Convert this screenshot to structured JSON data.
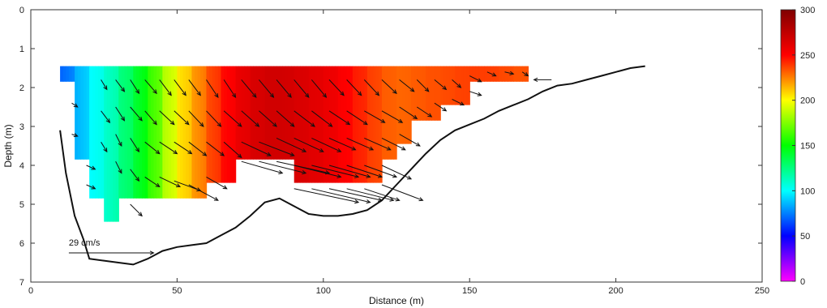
{
  "chart_data": {
    "type": "heatmap",
    "xlabel": "Distance (m)",
    "ylabel": "Depth (m)",
    "xlim": [
      0,
      250
    ],
    "ylim": [
      0,
      7
    ],
    "y_reversed": true,
    "xticks": [
      0,
      50,
      100,
      150,
      200,
      250
    ],
    "yticks": [
      0,
      1,
      2,
      3,
      4,
      5,
      6,
      7
    ],
    "colorbar": {
      "min": 0,
      "max": 300,
      "ticks": [
        0,
        50,
        100,
        150,
        200,
        250,
        300
      ],
      "colormap": "jet",
      "placement": "right"
    },
    "value_columns": [
      {
        "x0": 10,
        "x1": 15,
        "bottom": 1.85,
        "value": 70
      },
      {
        "x0": 15,
        "x1": 20,
        "bottom": 3.85,
        "value": 85
      },
      {
        "x0": 20,
        "x1": 25,
        "bottom": 4.85,
        "value": 100
      },
      {
        "x0": 25,
        "x1": 30,
        "bottom": 5.45,
        "value": 110
      },
      {
        "x0": 30,
        "x1": 35,
        "bottom": 4.85,
        "value": 125
      },
      {
        "x0": 35,
        "x1": 40,
        "bottom": 4.85,
        "value": 140
      },
      {
        "x0": 40,
        "x1": 45,
        "bottom": 4.85,
        "value": 160
      },
      {
        "x0": 45,
        "x1": 50,
        "bottom": 4.85,
        "value": 185
      },
      {
        "x0": 50,
        "x1": 55,
        "bottom": 4.85,
        "value": 205
      },
      {
        "x0": 55,
        "x1": 60,
        "bottom": 4.85,
        "value": 220
      },
      {
        "x0": 60,
        "x1": 65,
        "bottom": 4.45,
        "value": 235
      },
      {
        "x0": 65,
        "x1": 70,
        "bottom": 4.45,
        "value": 248
      },
      {
        "x0": 70,
        "x1": 75,
        "bottom": 3.85,
        "value": 258
      },
      {
        "x0": 75,
        "x1": 80,
        "bottom": 3.85,
        "value": 265
      },
      {
        "x0": 80,
        "x1": 85,
        "bottom": 3.85,
        "value": 268
      },
      {
        "x0": 85,
        "x1": 90,
        "bottom": 3.85,
        "value": 268
      },
      {
        "x0": 90,
        "x1": 95,
        "bottom": 4.45,
        "value": 265
      },
      {
        "x0": 95,
        "x1": 100,
        "bottom": 4.45,
        "value": 262
      },
      {
        "x0": 100,
        "x1": 105,
        "bottom": 4.45,
        "value": 258
      },
      {
        "x0": 105,
        "x1": 110,
        "bottom": 4.45,
        "value": 252
      },
      {
        "x0": 110,
        "x1": 115,
        "bottom": 4.45,
        "value": 245
      },
      {
        "x0": 115,
        "x1": 120,
        "bottom": 4.45,
        "value": 238
      },
      {
        "x0": 120,
        "x1": 125,
        "bottom": 3.85,
        "value": 232
      },
      {
        "x0": 125,
        "x1": 130,
        "bottom": 3.45,
        "value": 230
      },
      {
        "x0": 130,
        "x1": 135,
        "bottom": 2.85,
        "value": 232
      },
      {
        "x0": 135,
        "x1": 140,
        "bottom": 2.85,
        "value": 234
      },
      {
        "x0": 140,
        "x1": 145,
        "bottom": 2.45,
        "value": 235
      },
      {
        "x0": 145,
        "x1": 150,
        "bottom": 2.45,
        "value": 237
      },
      {
        "x0": 150,
        "x1": 155,
        "bottom": 1.85,
        "value": 238
      },
      {
        "x0": 155,
        "x1": 160,
        "bottom": 1.85,
        "value": 238
      },
      {
        "x0": 160,
        "x1": 165,
        "bottom": 1.85,
        "value": 236
      },
      {
        "x0": 165,
        "x1": 170,
        "bottom": 1.85,
        "value": 234
      }
    ],
    "value_top_depth": 1.45,
    "bathymetry": {
      "x": [
        10,
        12,
        15,
        18,
        20,
        25,
        30,
        35,
        40,
        45,
        50,
        55,
        60,
        65,
        70,
        75,
        80,
        85,
        90,
        95,
        100,
        105,
        110,
        115,
        120,
        125,
        130,
        135,
        140,
        145,
        150,
        155,
        160,
        165,
        170,
        175,
        180,
        185,
        190,
        195,
        200,
        205,
        210
      ],
      "depth": [
        3.1,
        4.2,
        5.3,
        5.9,
        6.4,
        6.45,
        6.5,
        6.55,
        6.4,
        6.2,
        6.1,
        6.05,
        6.0,
        5.8,
        5.6,
        5.3,
        4.95,
        4.85,
        5.05,
        5.25,
        5.3,
        5.3,
        5.25,
        5.15,
        4.9,
        4.5,
        4.1,
        3.7,
        3.35,
        3.1,
        2.95,
        2.8,
        2.6,
        2.45,
        2.3,
        2.1,
        1.95,
        1.9,
        1.8,
        1.7,
        1.6,
        1.5,
        1.45
      ]
    },
    "vector_reference": {
      "label": "29 cm/s",
      "x": 13,
      "depth": 6.25,
      "dx": 29,
      "ddepth": 0
    },
    "vectors": [
      {
        "x": 14,
        "depth": 2.4,
        "dx": 2,
        "ddepth": 0.1
      },
      {
        "x": 14,
        "depth": 3.2,
        "dx": 2,
        "ddepth": 0.05
      },
      {
        "x": 19,
        "depth": 4.0,
        "dx": 3,
        "ddepth": 0.1
      },
      {
        "x": 19,
        "depth": 4.5,
        "dx": 3,
        "ddepth": 0.1
      },
      {
        "x": 24,
        "depth": 1.8,
        "dx": 2,
        "ddepth": 0.25
      },
      {
        "x": 24,
        "depth": 2.6,
        "dx": 3,
        "ddepth": 0.3
      },
      {
        "x": 24,
        "depth": 3.4,
        "dx": 2,
        "ddepth": 0.25
      },
      {
        "x": 29,
        "depth": 1.8,
        "dx": 3,
        "ddepth": 0.3
      },
      {
        "x": 29,
        "depth": 2.5,
        "dx": 3,
        "ddepth": 0.35
      },
      {
        "x": 29,
        "depth": 3.2,
        "dx": 2,
        "ddepth": 0.3
      },
      {
        "x": 29,
        "depth": 3.9,
        "dx": 2,
        "ddepth": 0.3
      },
      {
        "x": 34,
        "depth": 1.8,
        "dx": 3,
        "ddepth": 0.35
      },
      {
        "x": 34,
        "depth": 2.5,
        "dx": 4,
        "ddepth": 0.35
      },
      {
        "x": 34,
        "depth": 3.3,
        "dx": 3,
        "ddepth": 0.35
      },
      {
        "x": 34,
        "depth": 4.1,
        "dx": 3,
        "ddepth": 0.3
      },
      {
        "x": 34,
        "depth": 5.0,
        "dx": 4,
        "ddepth": 0.3
      },
      {
        "x": 39,
        "depth": 1.8,
        "dx": 4,
        "ddepth": 0.35
      },
      {
        "x": 39,
        "depth": 2.6,
        "dx": 4,
        "ddepth": 0.35
      },
      {
        "x": 39,
        "depth": 3.4,
        "dx": 5,
        "ddepth": 0.3
      },
      {
        "x": 39,
        "depth": 4.3,
        "dx": 5,
        "ddepth": 0.25
      },
      {
        "x": 44,
        "depth": 1.8,
        "dx": 4,
        "ddepth": 0.4
      },
      {
        "x": 44,
        "depth": 2.6,
        "dx": 5,
        "ddepth": 0.35
      },
      {
        "x": 44,
        "depth": 3.4,
        "dx": 6,
        "ddepth": 0.3
      },
      {
        "x": 44,
        "depth": 4.3,
        "dx": 7,
        "ddepth": 0.25
      },
      {
        "x": 49,
        "depth": 1.8,
        "dx": 4,
        "ddepth": 0.4
      },
      {
        "x": 49,
        "depth": 2.6,
        "dx": 5,
        "ddepth": 0.35
      },
      {
        "x": 49,
        "depth": 3.4,
        "dx": 6,
        "ddepth": 0.3
      },
      {
        "x": 49,
        "depth": 4.4,
        "dx": 9,
        "ddepth": 0.25
      },
      {
        "x": 54,
        "depth": 1.8,
        "dx": 4,
        "ddepth": 0.4
      },
      {
        "x": 54,
        "depth": 2.6,
        "dx": 5,
        "ddepth": 0.4
      },
      {
        "x": 54,
        "depth": 3.4,
        "dx": 6,
        "ddepth": 0.35
      },
      {
        "x": 54,
        "depth": 4.5,
        "dx": 10,
        "ddepth": 0.4
      },
      {
        "x": 60,
        "depth": 1.8,
        "dx": 4,
        "ddepth": 0.45
      },
      {
        "x": 60,
        "depth": 2.6,
        "dx": 5,
        "ddepth": 0.4
      },
      {
        "x": 60,
        "depth": 3.4,
        "dx": 6,
        "ddepth": 0.35
      },
      {
        "x": 60,
        "depth": 4.3,
        "dx": 7,
        "ddepth": 0.3
      },
      {
        "x": 66,
        "depth": 1.8,
        "dx": 4,
        "ddepth": 0.45
      },
      {
        "x": 66,
        "depth": 2.6,
        "dx": 6,
        "ddepth": 0.4
      },
      {
        "x": 66,
        "depth": 3.4,
        "dx": 6,
        "ddepth": 0.4
      },
      {
        "x": 72,
        "depth": 1.8,
        "dx": 5,
        "ddepth": 0.45
      },
      {
        "x": 72,
        "depth": 2.6,
        "dx": 6,
        "ddepth": 0.4
      },
      {
        "x": 72,
        "depth": 3.4,
        "dx": 10,
        "ddepth": 0.35
      },
      {
        "x": 72,
        "depth": 3.9,
        "dx": 14,
        "ddepth": 0.3
      },
      {
        "x": 78,
        "depth": 1.8,
        "dx": 5,
        "ddepth": 0.45
      },
      {
        "x": 78,
        "depth": 2.6,
        "dx": 6,
        "ddepth": 0.4
      },
      {
        "x": 78,
        "depth": 3.4,
        "dx": 12,
        "ddepth": 0.35
      },
      {
        "x": 78,
        "depth": 3.9,
        "dx": 16,
        "ddepth": 0.3
      },
      {
        "x": 84,
        "depth": 1.8,
        "dx": 5,
        "ddepth": 0.45
      },
      {
        "x": 84,
        "depth": 2.6,
        "dx": 6,
        "ddepth": 0.4
      },
      {
        "x": 84,
        "depth": 3.3,
        "dx": 10,
        "ddepth": 0.35
      },
      {
        "x": 84,
        "depth": 3.9,
        "dx": 18,
        "ddepth": 0.3
      },
      {
        "x": 90,
        "depth": 1.8,
        "dx": 5,
        "ddepth": 0.45
      },
      {
        "x": 90,
        "depth": 2.6,
        "dx": 7,
        "ddepth": 0.4
      },
      {
        "x": 90,
        "depth": 3.3,
        "dx": 10,
        "ddepth": 0.35
      },
      {
        "x": 90,
        "depth": 4.0,
        "dx": 16,
        "ddepth": 0.3
      },
      {
        "x": 90,
        "depth": 4.6,
        "dx": 22,
        "ddepth": 0.35
      },
      {
        "x": 96,
        "depth": 1.8,
        "dx": 5,
        "ddepth": 0.45
      },
      {
        "x": 96,
        "depth": 2.6,
        "dx": 7,
        "ddepth": 0.4
      },
      {
        "x": 96,
        "depth": 3.3,
        "dx": 10,
        "ddepth": 0.35
      },
      {
        "x": 96,
        "depth": 4.0,
        "dx": 16,
        "ddepth": 0.3
      },
      {
        "x": 96,
        "depth": 4.6,
        "dx": 20,
        "ddepth": 0.35
      },
      {
        "x": 102,
        "depth": 1.8,
        "dx": 5,
        "ddepth": 0.4
      },
      {
        "x": 102,
        "depth": 2.6,
        "dx": 7,
        "ddepth": 0.35
      },
      {
        "x": 102,
        "depth": 3.3,
        "dx": 9,
        "ddepth": 0.3
      },
      {
        "x": 102,
        "depth": 4.0,
        "dx": 14,
        "ddepth": 0.3
      },
      {
        "x": 102,
        "depth": 4.6,
        "dx": 18,
        "ddepth": 0.3
      },
      {
        "x": 108,
        "depth": 1.8,
        "dx": 5,
        "ddepth": 0.4
      },
      {
        "x": 108,
        "depth": 2.6,
        "dx": 7,
        "ddepth": 0.35
      },
      {
        "x": 108,
        "depth": 3.3,
        "dx": 9,
        "ddepth": 0.3
      },
      {
        "x": 108,
        "depth": 4.0,
        "dx": 12,
        "ddepth": 0.3
      },
      {
        "x": 108,
        "depth": 4.6,
        "dx": 16,
        "ddepth": 0.3
      },
      {
        "x": 114,
        "depth": 1.8,
        "dx": 5,
        "ddepth": 0.4
      },
      {
        "x": 114,
        "depth": 2.6,
        "dx": 7,
        "ddepth": 0.3
      },
      {
        "x": 114,
        "depth": 3.3,
        "dx": 9,
        "ddepth": 0.3
      },
      {
        "x": 114,
        "depth": 4.0,
        "dx": 11,
        "ddepth": 0.3
      },
      {
        "x": 114,
        "depth": 4.6,
        "dx": 12,
        "ddepth": 0.3
      },
      {
        "x": 120,
        "depth": 1.8,
        "dx": 5,
        "ddepth": 0.35
      },
      {
        "x": 120,
        "depth": 2.6,
        "dx": 7,
        "ddepth": 0.3
      },
      {
        "x": 120,
        "depth": 3.3,
        "dx": 8,
        "ddepth": 0.3
      },
      {
        "x": 120,
        "depth": 4.0,
        "dx": 10,
        "ddepth": 0.35
      },
      {
        "x": 120,
        "depth": 4.5,
        "dx": 14,
        "ddepth": 0.4
      },
      {
        "x": 126,
        "depth": 1.8,
        "dx": 5,
        "ddepth": 0.3
      },
      {
        "x": 126,
        "depth": 2.5,
        "dx": 6,
        "ddepth": 0.3
      },
      {
        "x": 126,
        "depth": 3.2,
        "dx": 7,
        "ddepth": 0.3
      },
      {
        "x": 132,
        "depth": 1.8,
        "dx": 4,
        "ddepth": 0.3
      },
      {
        "x": 132,
        "depth": 2.5,
        "dx": 5,
        "ddepth": 0.25
      },
      {
        "x": 138,
        "depth": 1.8,
        "dx": 4,
        "ddepth": 0.25
      },
      {
        "x": 138,
        "depth": 2.4,
        "dx": 4,
        "ddepth": 0.2
      },
      {
        "x": 144,
        "depth": 1.8,
        "dx": 3,
        "ddepth": 0.2
      },
      {
        "x": 144,
        "depth": 2.3,
        "dx": 4,
        "ddepth": 0.15
      },
      {
        "x": 150,
        "depth": 1.7,
        "dx": 4,
        "ddepth": 0.15
      },
      {
        "x": 150,
        "depth": 2.1,
        "dx": 4,
        "ddepth": 0.1
      },
      {
        "x": 156,
        "depth": 1.6,
        "dx": 3,
        "ddepth": 0.1
      },
      {
        "x": 162,
        "depth": 1.6,
        "dx": 3,
        "ddepth": 0.05
      },
      {
        "x": 168,
        "depth": 1.6,
        "dx": 2,
        "ddepth": 0.1
      },
      {
        "x": 178,
        "depth": 1.8,
        "dx": -6,
        "ddepth": 0.0
      }
    ]
  }
}
